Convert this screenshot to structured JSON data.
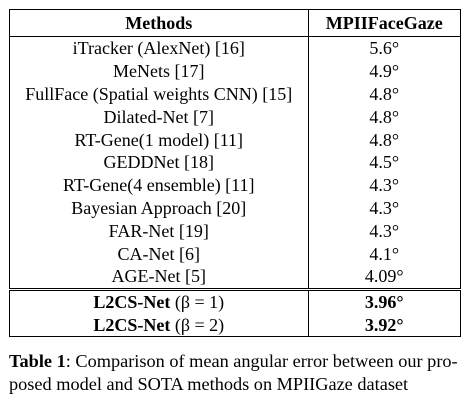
{
  "table": {
    "headers": [
      "Methods",
      "MPIIFaceGaze"
    ],
    "rows": [
      {
        "method": "iTracker (AlexNet) [16]",
        "score": "5.6°"
      },
      {
        "method": "MeNets [17]",
        "score": "4.9°"
      },
      {
        "method": "FullFace (Spatial weights CNN) [15]",
        "score": "4.8°"
      },
      {
        "method": "Dilated-Net [7]",
        "score": "4.8°"
      },
      {
        "method": "RT-Gene(1 model) [11]",
        "score": "4.8°"
      },
      {
        "method": "GEDDNet [18]",
        "score": "4.5°"
      },
      {
        "method": "RT-Gene(4 ensemble) [11]",
        "score": "4.3°"
      },
      {
        "method": "Bayesian Approach [20]",
        "score": "4.3°"
      },
      {
        "method": "FAR-Net [19]",
        "score": "4.3°"
      },
      {
        "method": "CA-Net [6]",
        "score": "4.1°"
      },
      {
        "method": "AGE-Net [5]",
        "score": "4.09°"
      }
    ],
    "ours": [
      {
        "name": "L2CS-Net",
        "param": "(β = 1)",
        "score": "3.96°"
      },
      {
        "name": "L2CS-Net",
        "param": "(β = 2)",
        "score": "3.92°"
      }
    ]
  },
  "caption": {
    "label": "Table 1",
    "text": ": Comparison of mean angular error between our pro-posed model and SOTA methods on MPIIGaze dataset"
  }
}
